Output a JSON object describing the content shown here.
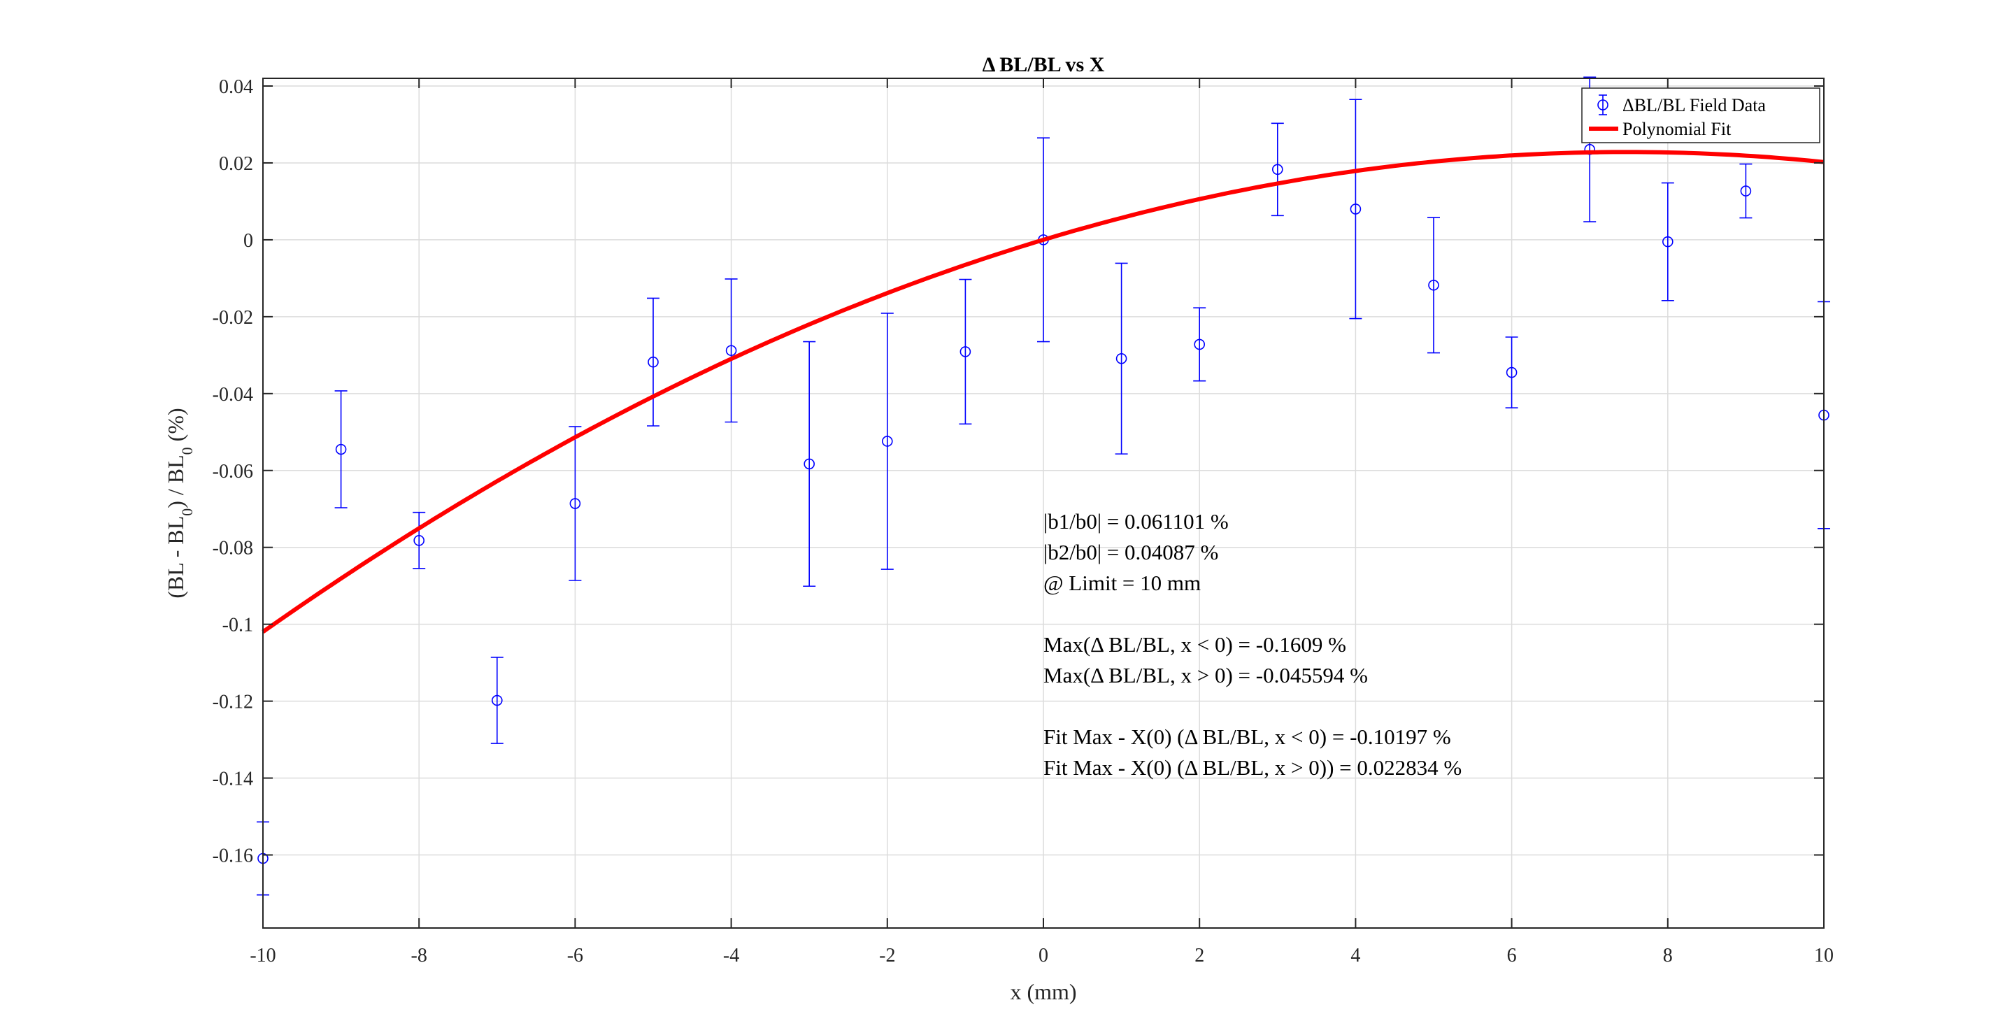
{
  "chart_data": {
    "type": "scatter",
    "title": "Δ BL/BL vs X",
    "xlabel": "x (mm)",
    "ylabel_parts": [
      "(BL - BL",
      "0",
      ") / BL",
      "0",
      " (%)"
    ],
    "xlim": [
      -10,
      10
    ],
    "ylim": [
      -0.179,
      0.042
    ],
    "x_ticks": [
      -10,
      -8,
      -6,
      -4,
      -2,
      0,
      2,
      4,
      6,
      8,
      10
    ],
    "x_tick_labels": [
      "-10",
      "-8",
      "-6",
      "-4",
      "-2",
      "0",
      "2",
      "4",
      "6",
      "8",
      "10"
    ],
    "y_ticks": [
      0.04,
      0.02,
      0,
      -0.02,
      -0.04,
      -0.06,
      -0.08,
      -0.1,
      -0.12,
      -0.14,
      -0.16
    ],
    "y_tick_labels": [
      "0.04",
      "0.02",
      "0",
      "-0.02",
      "-0.04",
      "-0.06",
      "-0.08",
      "-0.1",
      "-0.12",
      "-0.14",
      "-0.16"
    ],
    "grid": true,
    "legend_position": "top-right",
    "series": [
      {
        "name": "ΔBL/BL Field Data",
        "kind": "errorbar",
        "color": "#0000ff",
        "x": [
          -10,
          -9,
          -8,
          -7,
          -6,
          -5,
          -4,
          -3,
          -2,
          -1,
          0,
          1,
          2,
          3,
          4,
          5,
          6,
          7,
          8,
          9,
          10
        ],
        "y": [
          -0.1609,
          -0.0545,
          -0.0782,
          -0.1198,
          -0.0686,
          -0.0318,
          -0.0288,
          -0.0583,
          -0.0524,
          -0.0291,
          0.0,
          -0.0309,
          -0.0272,
          0.0183,
          0.008,
          -0.0118,
          -0.0345,
          0.0235,
          -0.0005,
          0.0127,
          -0.0456
        ],
        "err": [
          0.0095,
          0.0152,
          0.0073,
          0.0112,
          0.02,
          0.0166,
          0.0186,
          0.0318,
          0.0333,
          0.0188,
          0.0265,
          0.0248,
          0.0095,
          0.012,
          0.0285,
          0.0176,
          0.0092,
          0.0188,
          0.0153,
          0.007,
          0.0295
        ]
      },
      {
        "name": "Polynomial Fit",
        "kind": "line",
        "color": "#ff0000",
        "poly": {
          "c0": 0.0,
          "c1": 0.0061101,
          "c2": -0.0004087
        }
      }
    ],
    "annotations": [
      "|b1/b0| = 0.061101 %",
      "|b2/b0| = 0.04087 %",
      "@ Limit = 10 mm",
      "",
      "Max(Δ BL/BL,  x < 0) = -0.1609 %",
      "Max(Δ BL/BL,  x > 0) = -0.045594 %",
      "",
      "Fit Max - X(0) (Δ BL/BL,  x < 0) = -0.10197 %",
      "Fit Max - X(0) (Δ BL/BL,  x > 0)) = 0.022834 %"
    ]
  }
}
